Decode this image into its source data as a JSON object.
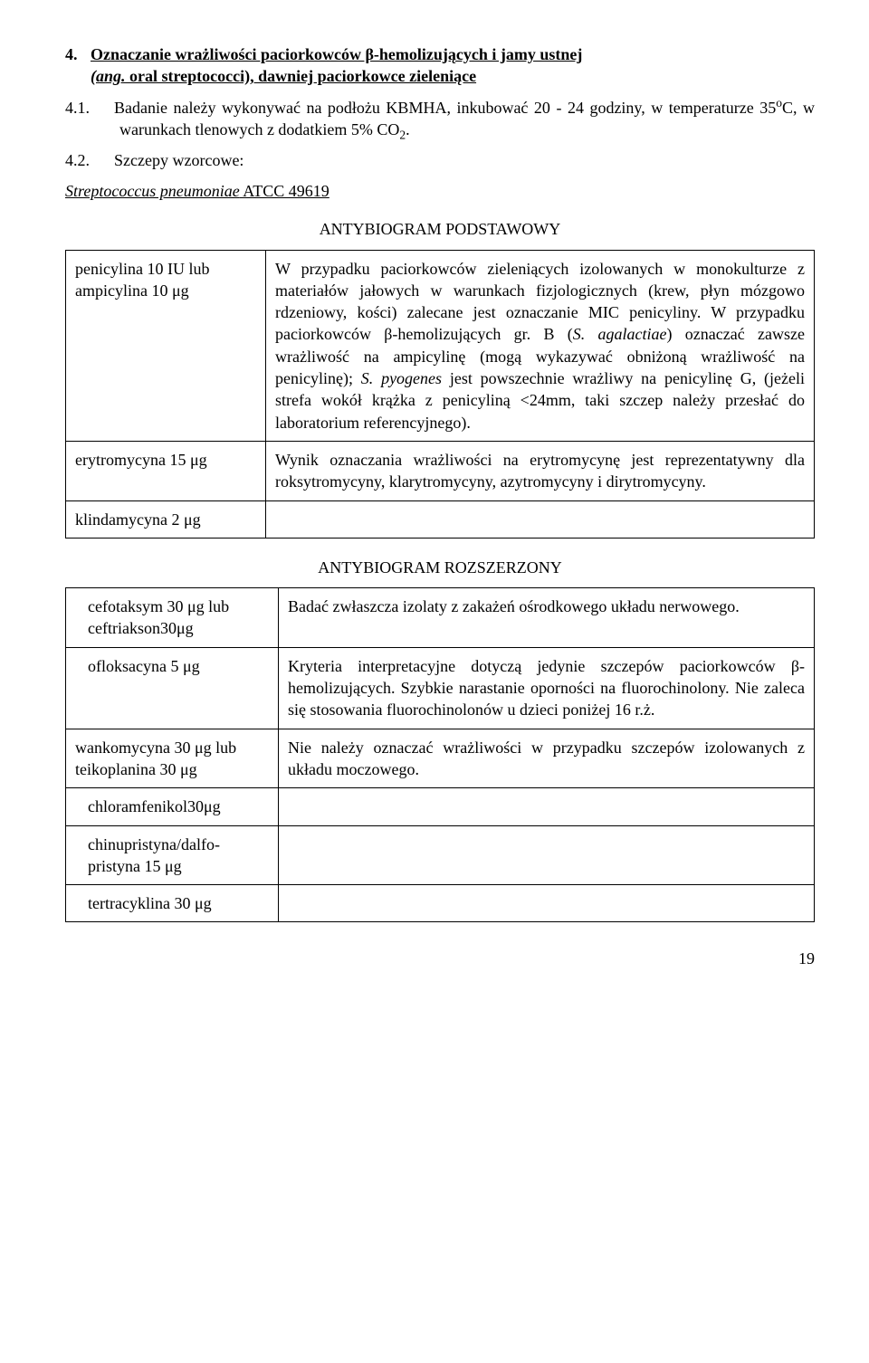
{
  "heading": {
    "number": "4.",
    "text_plain": "Oznaczanie wrażliwości paciorkowców β-hemolizujących i jamy ustnej",
    "line2_italic": "(ang.",
    "line2_rest": " oral streptococci), dawniej paciorkowce zieleniące"
  },
  "sublist": [
    {
      "idx": "4.1.",
      "text_before_sup": "Badanie należy wykonywać na podłożu KBMHA, inkubować 20 - 24 godziny, w temperaturze 35",
      "sup": "o",
      "text_mid": "C, w warunkach tlenowych z dodatkiem 5% CO",
      "sub": "2",
      "text_after": "."
    },
    {
      "idx": "4.2.",
      "text": "Szczepy wzorcowe:"
    }
  ],
  "ref": {
    "italic_ul": "Streptococcus pneumoniae",
    "rest_ul": " ATCC 49619"
  },
  "table1": {
    "title": "ANTYBIOGRAM PODSTAWOWY",
    "rows": [
      {
        "left": "penicylina 10 IU lub ampicylina 10 μg",
        "right_html": "W przypadku paciorkowców zieleniących izolowanych w monokulturze z materiałów jałowych w warunkach fizjologicznych (krew, płyn mózgowo rdzeniowy, kości) zalecane jest oznaczanie MIC penicyliny. W przypadku paciorkowców β-hemolizujących gr. B (<i>S. agalactiae</i>) oznaczać zawsze wrażliwość na ampicylinę (mogą wykazywać obniżoną wrażliwość na penicylinę); <i>S. pyogenes</i> jest powszechnie wrażliwy na penicylinę G, (jeżeli strefa wokół krążka z penicyliną <24mm, taki szczep należy przesłać do laboratorium referencyjnego)."
      },
      {
        "left": "erytromycyna 15 μg",
        "right": "Wynik oznaczania wrażliwości na erytromycynę jest reprezentatywny dla roksytromycyny, klarytromycyny, azytromycyny i dirytromycyny."
      },
      {
        "left": "klindamycyna 2 μg",
        "right": ""
      }
    ]
  },
  "table2": {
    "title": "ANTYBIOGRAM ROZSZERZONY",
    "rows": [
      {
        "left": "cefotaksym 30 μg lub ceftriakson30μg",
        "right": "Badać zwłaszcza izolaty z zakażeń ośrodkowego układu nerwowego.",
        "indent": true
      },
      {
        "left": "ofloksacyna 5 μg",
        "right": "Kryteria interpretacyjne dotyczą jedynie szczepów paciorkowców β-hemolizujących. Szybkie narastanie oporności na fluorochinolony. Nie zaleca się stosowania fluorochinolonów u dzieci poniżej 16 r.ż.",
        "indent": true
      },
      {
        "left": "wankomycyna 30 μg lub teikoplanina 30 μg",
        "right": "Nie należy oznaczać wrażliwości w przypadku szczepów izolowanych z układu moczowego.",
        "indent": false
      },
      {
        "left": "chloramfenikol30μg",
        "right": "",
        "indent": true
      },
      {
        "left": "chinupristyna/dalfo-pristyna 15 μg",
        "right": "",
        "indent": true
      },
      {
        "left": "tertracyklina 30 μg",
        "right": "",
        "indent": true
      }
    ]
  },
  "page_number": "19"
}
